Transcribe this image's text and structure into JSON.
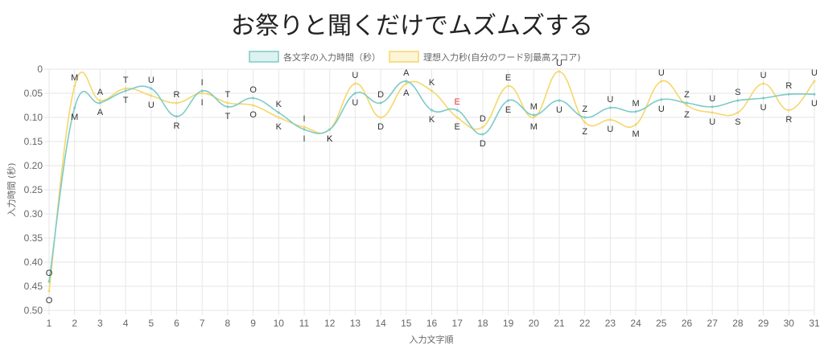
{
  "chart_data": {
    "type": "line",
    "title": "お祭りと聞くだけでムズムズする",
    "xlabel": "入力文字順",
    "ylabel": "入力時間 (秒)",
    "ylim": [
      0,
      0.5
    ],
    "y_reversed": true,
    "y_ticks": [
      "0",
      "0.05",
      "0.10",
      "0.15",
      "0.20",
      "0.25",
      "0.30",
      "0.35",
      "0.40",
      "0.45",
      "0.50"
    ],
    "y_tick_values": [
      0,
      0.05,
      0.1,
      0.15,
      0.2,
      0.25,
      0.3,
      0.35,
      0.4,
      0.45,
      0.5
    ],
    "x": [
      "1",
      "2",
      "3",
      "4",
      "5",
      "6",
      "7",
      "8",
      "9",
      "10",
      "11",
      "12",
      "13",
      "14",
      "15",
      "16",
      "17",
      "18",
      "19",
      "20",
      "21",
      "22",
      "23",
      "24",
      "25",
      "26",
      "27",
      "28",
      "29",
      "30",
      "31"
    ],
    "grid": true,
    "legend_position": "top",
    "series": [
      {
        "name": "各文字の入力時間（秒）",
        "color": "#7ccbc9",
        "fill": "#ddf2f1",
        "values": [
          0.44,
          0.08,
          0.07,
          0.045,
          0.04,
          0.098,
          0.045,
          0.078,
          0.06,
          0.09,
          0.125,
          0.125,
          0.05,
          0.07,
          0.025,
          0.085,
          0.085,
          0.135,
          0.065,
          0.095,
          0.065,
          0.1,
          0.08,
          0.088,
          0.063,
          0.07,
          0.078,
          0.065,
          0.06,
          0.052,
          0.052
        ],
        "labels": [
          "O",
          "M",
          "A",
          "T",
          "U",
          "R",
          "I",
          "T",
          "O",
          "K",
          "I",
          "K",
          "U",
          "D",
          "A",
          "K",
          "E",
          "D",
          "E",
          "M",
          "U",
          "Z",
          "U",
          "M",
          "U",
          "Z",
          "U",
          "S",
          "U",
          "R",
          "U"
        ],
        "label_colors": [
          "#333333",
          "#333333",
          "#333333",
          "#333333",
          "#333333",
          "#333333",
          "#333333",
          "#333333",
          "#333333",
          "#333333",
          "#333333",
          "#333333",
          "#333333",
          "#333333",
          "#333333",
          "#333333",
          "#e53935",
          "#333333",
          "#333333",
          "#333333",
          "#333333",
          "#333333",
          "#333333",
          "#333333",
          "#333333",
          "#333333",
          "#333333",
          "#333333",
          "#333333",
          "#333333",
          "#333333"
        ]
      },
      {
        "name": "理想入力秒(自分のワード別最高スコア)",
        "color": "#f5d76a",
        "fill": "#fdf5d6",
        "values": [
          0.46,
          0.035,
          0.065,
          0.04,
          0.055,
          0.07,
          0.05,
          0.07,
          0.075,
          0.1,
          0.12,
          0.125,
          0.03,
          0.1,
          0.03,
          0.045,
          0.1,
          0.12,
          0.035,
          0.1,
          0.005,
          0.11,
          0.105,
          0.115,
          0.025,
          0.075,
          0.09,
          0.09,
          0.03,
          0.085,
          0.025
        ],
        "labels": [
          "O",
          "M",
          "A",
          "T",
          "U",
          "R",
          "I",
          "T",
          "O",
          "K",
          "I",
          "K",
          "U",
          "D",
          "A",
          "K",
          "E",
          "D",
          "E",
          "M",
          "U",
          "Z",
          "U",
          "M",
          "U",
          "Z",
          "U",
          "S",
          "U",
          "R",
          "U"
        ]
      }
    ]
  }
}
